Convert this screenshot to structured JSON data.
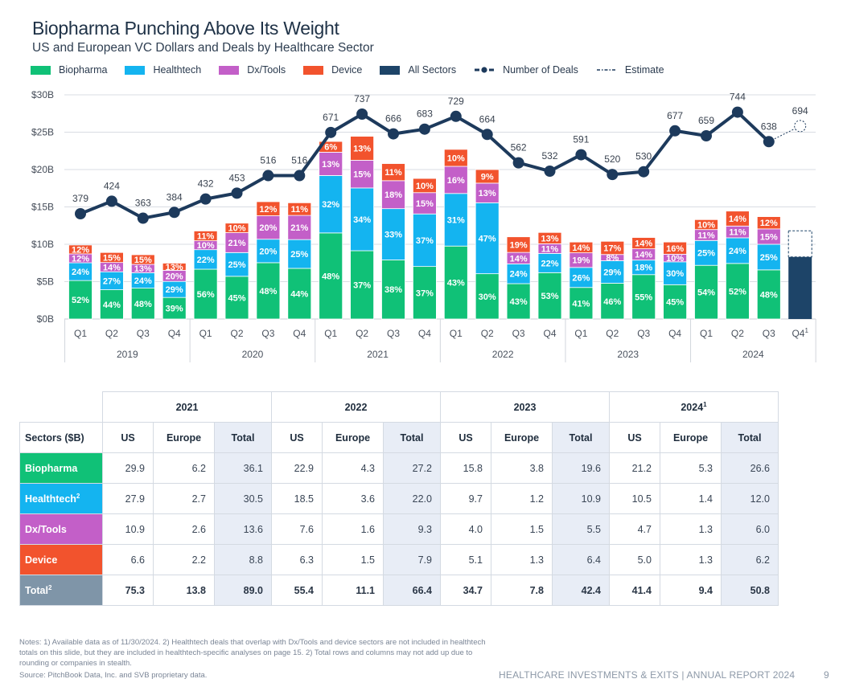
{
  "header": {
    "title": "Biopharma Punching Above Its Weight",
    "subtitle": "US and European VC Dollars and Deals by Healthcare Sector"
  },
  "legend": [
    {
      "label": "Biopharma",
      "color": "#10c177",
      "kind": "swatch"
    },
    {
      "label": "Healthtech",
      "color": "#14b4f0",
      "kind": "swatch"
    },
    {
      "label": "Dx/Tools",
      "color": "#c35fc8",
      "kind": "swatch"
    },
    {
      "label": "Device",
      "color": "#f2532d",
      "kind": "swatch"
    },
    {
      "label": "All Sectors",
      "color": "#1d4468",
      "kind": "swatch"
    },
    {
      "label": "Number of Deals",
      "color": "#1d3a5c",
      "kind": "line-marker"
    },
    {
      "label": "Estimate",
      "color": "#1d3a5c",
      "kind": "dashed"
    }
  ],
  "chart_data": {
    "type": "bar",
    "stacked": true,
    "title": "Biopharma Punching Above Its Weight",
    "subtitle": "US and European VC Dollars and Deals by Healthcare Sector",
    "ylabel": "",
    "xlabel": "",
    "ylim": [
      0,
      30
    ],
    "yticks": [
      "$0B",
      "$5B",
      "$10B",
      "$15B",
      "$20B",
      "$25B",
      "$30B"
    ],
    "ytick_values": [
      0,
      5,
      10,
      15,
      20,
      25,
      30
    ],
    "grid": true,
    "legend_position": "top-left",
    "years": [
      "2019",
      "2020",
      "2021",
      "2022",
      "2023",
      "2024"
    ],
    "categories": [
      "Q1",
      "Q2",
      "Q3",
      "Q4",
      "Q1",
      "Q2",
      "Q3",
      "Q4",
      "Q1",
      "Q2",
      "Q3",
      "Q4",
      "Q1",
      "Q2",
      "Q3",
      "Q4",
      "Q1",
      "Q2",
      "Q3",
      "Q4",
      "Q1",
      "Q2",
      "Q3",
      "Q4"
    ],
    "category_superscripts": [
      "",
      "",
      "",
      "",
      "",
      "",
      "",
      "",
      "",
      "",
      "",
      "",
      "",
      "",
      "",
      "",
      "",
      "",
      "",
      "",
      "",
      "",
      "",
      "1"
    ],
    "totals_billion": [
      9.9,
      8.9,
      8.6,
      7.4,
      11.9,
      12.7,
      15.7,
      15.4,
      24.0,
      24.7,
      20.8,
      19.0,
      22.7,
      20.2,
      11.0,
      11.7,
      10.3,
      10.4,
      10.8,
      10.2,
      13.3,
      14.3,
      13.7,
      null
    ],
    "series": [
      {
        "name": "Biopharma",
        "color": "#10c177",
        "percent": [
          52,
          44,
          48,
          39,
          56,
          45,
          48,
          44,
          48,
          37,
          38,
          37,
          43,
          30,
          43,
          53,
          41,
          46,
          55,
          45,
          54,
          52,
          48,
          null
        ]
      },
      {
        "name": "Healthtech",
        "color": "#14b4f0",
        "percent": [
          24,
          27,
          24,
          29,
          22,
          25,
          20,
          25,
          32,
          34,
          33,
          37,
          31,
          47,
          24,
          22,
          26,
          29,
          18,
          30,
          25,
          24,
          25,
          null
        ]
      },
      {
        "name": "Dx/Tools",
        "color": "#c35fc8",
        "percent": [
          12,
          14,
          13,
          20,
          10,
          21,
          20,
          21,
          13,
          15,
          18,
          15,
          16,
          13,
          14,
          11,
          19,
          8,
          14,
          10,
          11,
          11,
          15,
          null
        ]
      },
      {
        "name": "Device",
        "color": "#f2532d",
        "percent": [
          12,
          15,
          15,
          13,
          11,
          10,
          12,
          11,
          6,
          13,
          11,
          10,
          10,
          9,
          19,
          13,
          14,
          17,
          14,
          16,
          10,
          14,
          12,
          null
        ]
      }
    ],
    "all_sectors_q4_2024": {
      "name": "All Sectors",
      "color": "#1d4468",
      "actual_billion": 8.3,
      "estimate_billion": 11.8
    },
    "deals": {
      "name": "Number of Deals",
      "color": "#1d3a5c",
      "values": [
        379,
        424,
        363,
        384,
        432,
        453,
        516,
        516,
        671,
        737,
        666,
        683,
        729,
        664,
        562,
        532,
        591,
        520,
        530,
        677,
        659,
        744,
        638,
        694
      ],
      "estimate_index": 23
    }
  },
  "table": {
    "years": [
      "2021",
      "2022",
      "2023",
      "2024"
    ],
    "year_superscripts": [
      "",
      "",
      "",
      "1"
    ],
    "sector_header": "Sectors ($B)",
    "subheaders": [
      "US",
      "Europe",
      "Total"
    ],
    "rows": [
      {
        "sector": "Biopharma",
        "sup": "",
        "color": "#10c177",
        "values": [
          "29.9",
          "6.2",
          "36.1",
          "22.9",
          "4.3",
          "27.2",
          "15.8",
          "3.8",
          "19.6",
          "21.2",
          "5.3",
          "26.6"
        ]
      },
      {
        "sector": "Healthtech",
        "sup": "2",
        "color": "#14b4f0",
        "values": [
          "27.9",
          "2.7",
          "30.5",
          "18.5",
          "3.6",
          "22.0",
          "9.7",
          "1.2",
          "10.9",
          "10.5",
          "1.4",
          "12.0"
        ]
      },
      {
        "sector": "Dx/Tools",
        "sup": "",
        "color": "#c35fc8",
        "values": [
          "10.9",
          "2.6",
          "13.6",
          "7.6",
          "1.6",
          "9.3",
          "4.0",
          "1.5",
          "5.5",
          "4.7",
          "1.3",
          "6.0"
        ]
      },
      {
        "sector": "Device",
        "sup": "",
        "color": "#f2532d",
        "values": [
          "6.6",
          "2.2",
          "8.8",
          "6.3",
          "1.5",
          "7.9",
          "5.1",
          "1.3",
          "6.4",
          "5.0",
          "1.3",
          "6.2"
        ]
      },
      {
        "sector": "Total",
        "sup": "2",
        "color": "#7f95a8",
        "values": [
          "75.3",
          "13.8",
          "89.0",
          "55.4",
          "11.1",
          "66.4",
          "34.7",
          "7.8",
          "42.4",
          "41.4",
          "9.4",
          "50.8"
        ],
        "total": true
      }
    ]
  },
  "notes": "Notes: 1) Available data as of 11/30/2024. 2) Healthtech deals that overlap with Dx/Tools and device sectors are not included in healthtech totals on this slide, but they are included in healthtech-specific analyses on page 15. 2) Total rows and columns may not add up due to rounding or companies in stealth.",
  "source": "Source: PitchBook Data, Inc. and SVB proprietary data.",
  "footer": {
    "report": "HEALTHCARE INVESTMENTS & EXITS | ANNUAL REPORT 2024",
    "page": "9"
  }
}
